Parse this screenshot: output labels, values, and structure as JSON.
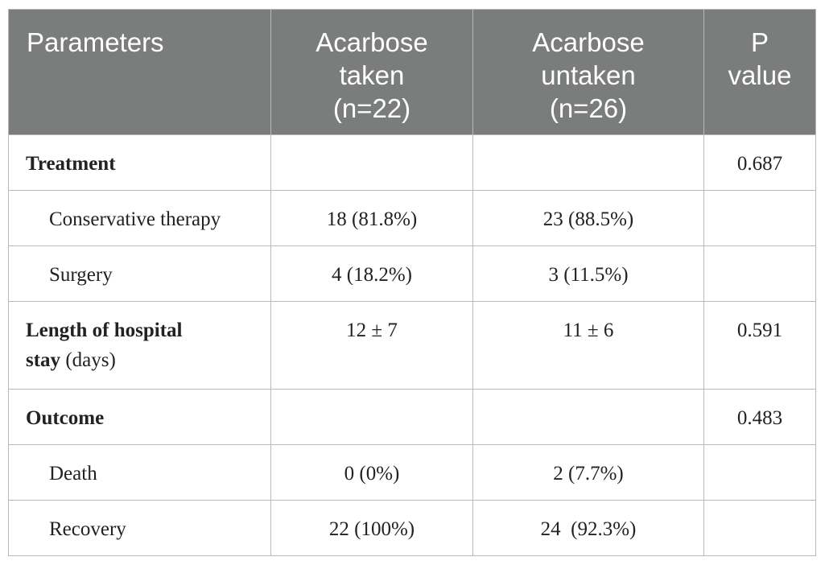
{
  "headers": {
    "parameters": "Parameters",
    "taken_l1": "Acarbose",
    "taken_l2": "taken",
    "taken_l3": "(n=22)",
    "untaken_l1": "Acarbose",
    "untaken_l2": "untaken",
    "untaken_l3": "(n=26)",
    "p_l1": "P",
    "p_l2": "value"
  },
  "rows": {
    "treatment": {
      "label": "Treatment",
      "taken": "",
      "untaken": "",
      "p": "0.687"
    },
    "conservative": {
      "label": "Conservative therapy",
      "taken": "18 (81.8%)",
      "untaken": "23 (88.5%)",
      "p": ""
    },
    "surgery": {
      "label": "Surgery",
      "taken": "4 (18.2%)",
      "untaken": "3 (11.5%)",
      "p": ""
    },
    "los": {
      "label_bold_1": "Length of hospital",
      "label_bold_2": "stay",
      "label_rest": " (days)",
      "taken": "12 ± 7",
      "untaken": "11 ± 6",
      "p": "0.591"
    },
    "outcome": {
      "label": "Outcome",
      "taken": "",
      "untaken": "",
      "p": "0.483"
    },
    "death": {
      "label": "Death",
      "taken": "0 (0%)",
      "untaken": "2 (7.7%)",
      "p": ""
    },
    "recovery": {
      "label": "Recovery",
      "taken": "22 (100%)",
      "untaken": "24  (92.3%)",
      "p": ""
    }
  }
}
